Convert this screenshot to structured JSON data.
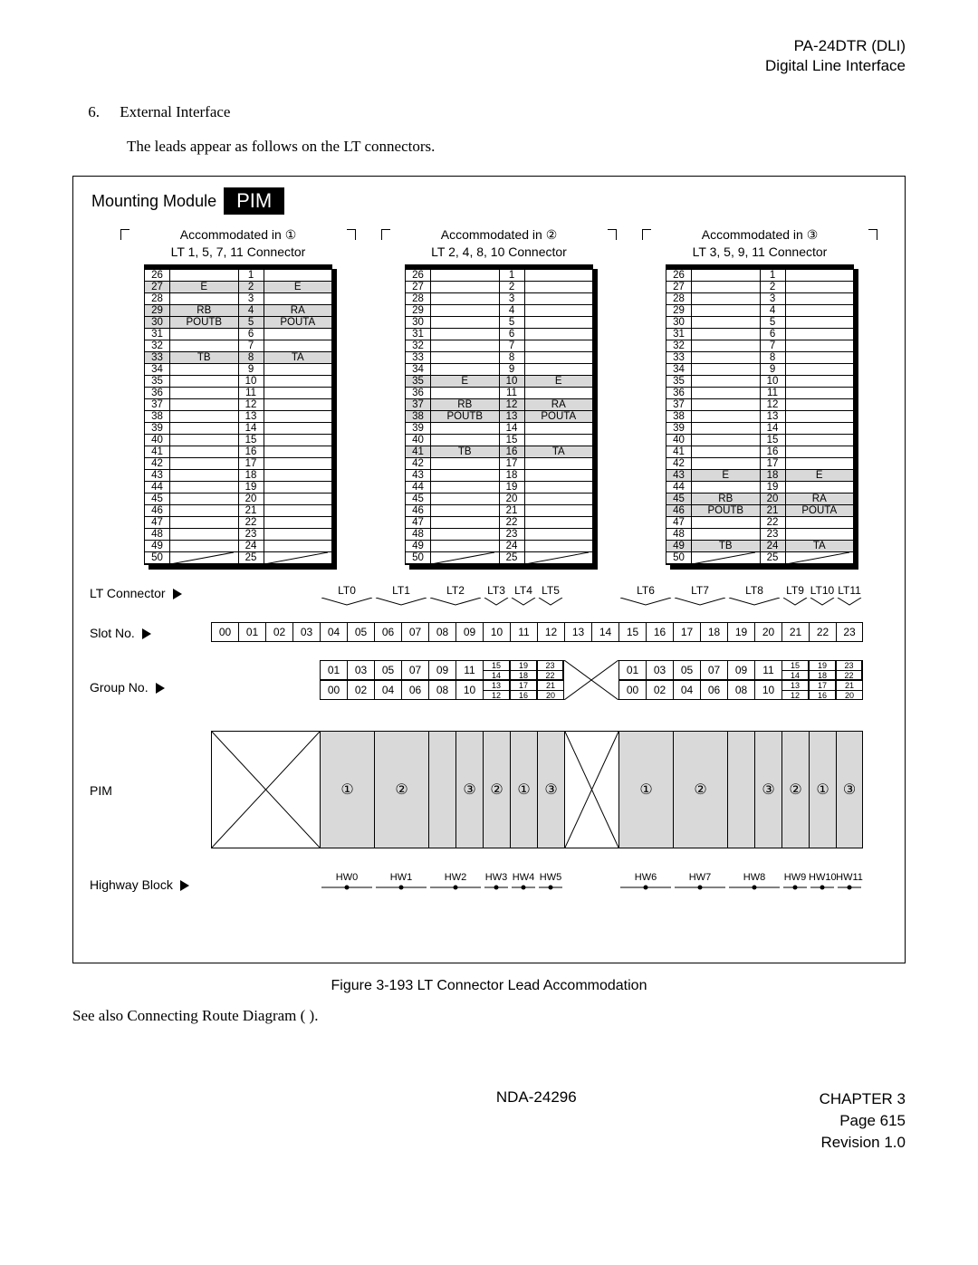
{
  "header": {
    "line1": "PA-24DTR (DLI)",
    "line2": "Digital Line Interface"
  },
  "section": {
    "num": "6.",
    "title": "External Interface",
    "body": "The leads appear as follows on the LT connectors."
  },
  "figure": {
    "mounting_label": "Mounting Module",
    "pim_badge": "PIM",
    "blocks": [
      {
        "head": "Accommodated in ①",
        "sub": "LT 1, 5, 7, 11 Connector",
        "rows_l": [
          "26",
          "27",
          "28",
          "29",
          "30",
          "31",
          "32",
          "33",
          "34",
          "35",
          "36",
          "37",
          "38",
          "39",
          "40",
          "41",
          "42",
          "43",
          "44",
          "45",
          "46",
          "47",
          "48",
          "49",
          "50"
        ],
        "rows_r": [
          "1",
          "2",
          "3",
          "4",
          "5",
          "6",
          "7",
          "8",
          "9",
          "10",
          "11",
          "12",
          "13",
          "14",
          "15",
          "16",
          "17",
          "18",
          "19",
          "20",
          "21",
          "22",
          "23",
          "24",
          "25"
        ],
        "sig_rows": {
          "1": {
            "l": "E",
            "r": "E"
          },
          "3": {
            "l": "RB",
            "r": "RA"
          },
          "4": {
            "l": "POUTB",
            "r": "POUTA"
          },
          "7": {
            "l": "TB",
            "r": "TA"
          }
        }
      },
      {
        "head": "Accommodated in ②",
        "sub": "LT 2, 4, 8, 10 Connector",
        "rows_l": [
          "26",
          "27",
          "28",
          "29",
          "30",
          "31",
          "32",
          "33",
          "34",
          "35",
          "36",
          "37",
          "38",
          "39",
          "40",
          "41",
          "42",
          "43",
          "44",
          "45",
          "46",
          "47",
          "48",
          "49",
          "50"
        ],
        "rows_r": [
          "1",
          "2",
          "3",
          "4",
          "5",
          "6",
          "7",
          "8",
          "9",
          "10",
          "11",
          "12",
          "13",
          "14",
          "15",
          "16",
          "17",
          "18",
          "19",
          "20",
          "21",
          "22",
          "23",
          "24",
          "25"
        ],
        "sig_rows": {
          "9": {
            "l": "E",
            "r": "E"
          },
          "11": {
            "l": "RB",
            "r": "RA"
          },
          "12": {
            "l": "POUTB",
            "r": "POUTA"
          },
          "15": {
            "l": "TB",
            "r": "TA"
          }
        }
      },
      {
        "head": "Accommodated in ③",
        "sub": "LT 3, 5, 9, 11 Connector",
        "rows_l": [
          "26",
          "27",
          "28",
          "29",
          "30",
          "31",
          "32",
          "33",
          "34",
          "35",
          "36",
          "37",
          "38",
          "39",
          "40",
          "41",
          "42",
          "43",
          "44",
          "45",
          "46",
          "47",
          "48",
          "49",
          "50"
        ],
        "rows_r": [
          "1",
          "2",
          "3",
          "4",
          "5",
          "6",
          "7",
          "8",
          "9",
          "10",
          "11",
          "12",
          "13",
          "14",
          "15",
          "16",
          "17",
          "18",
          "19",
          "20",
          "21",
          "22",
          "23",
          "24",
          "25"
        ],
        "sig_rows": {
          "17": {
            "l": "E",
            "r": "E"
          },
          "19": {
            "l": "RB",
            "r": "RA"
          },
          "20": {
            "l": "POUTB",
            "r": "POUTA"
          },
          "23": {
            "l": "TB",
            "r": "TA"
          }
        }
      }
    ],
    "lt_connector_label": "LT Connector",
    "slot_no_label": "Slot No.",
    "group_no_label": "Group No.",
    "pim_label": "PIM",
    "highway_block_label": "Highway Block",
    "lt_labels_left": [
      "LT0",
      "LT1",
      "LT2",
      "LT3",
      "LT4",
      "LT5"
    ],
    "lt_labels_right": [
      "LT6",
      "LT7",
      "LT8",
      "LT9",
      "LT10",
      "LT11"
    ],
    "slots": [
      "00",
      "01",
      "02",
      "03",
      "04",
      "05",
      "06",
      "07",
      "08",
      "09",
      "10",
      "11",
      "12",
      "13",
      "14",
      "15",
      "16",
      "17",
      "18",
      "19",
      "20",
      "21",
      "22",
      "23"
    ],
    "group_simple": [
      "01",
      "03",
      "05",
      "07",
      "09",
      "11"
    ],
    "group_simple2": [
      "00",
      "02",
      "04",
      "06",
      "08",
      "10"
    ],
    "group_stacks": [
      [
        "15",
        "14",
        "13",
        "12"
      ],
      [
        "19",
        "18",
        "17",
        "16"
      ],
      [
        "23",
        "22",
        "21",
        "20"
      ]
    ],
    "pim_circles_left": [
      "①",
      "②",
      "",
      "③",
      "②",
      "①",
      "③"
    ],
    "pim_circles_right": [
      "①",
      "②",
      "",
      "③",
      "②",
      "①",
      "③"
    ],
    "hw_left": [
      "HW0",
      "HW1",
      "HW2",
      "HW3",
      "HW4",
      "HW5"
    ],
    "hw_right": [
      "HW6",
      "HW7",
      "HW8",
      "HW9",
      "HW10",
      "HW11"
    ],
    "caption": "Figure 3-193   LT Connector Lead Accommodation"
  },
  "footnote": "See also Connecting Route Diagram (                    ).",
  "footer": {
    "center": "NDA-24296",
    "right1": "CHAPTER 3",
    "right2": "Page 615",
    "right3": "Revision 1.0"
  }
}
